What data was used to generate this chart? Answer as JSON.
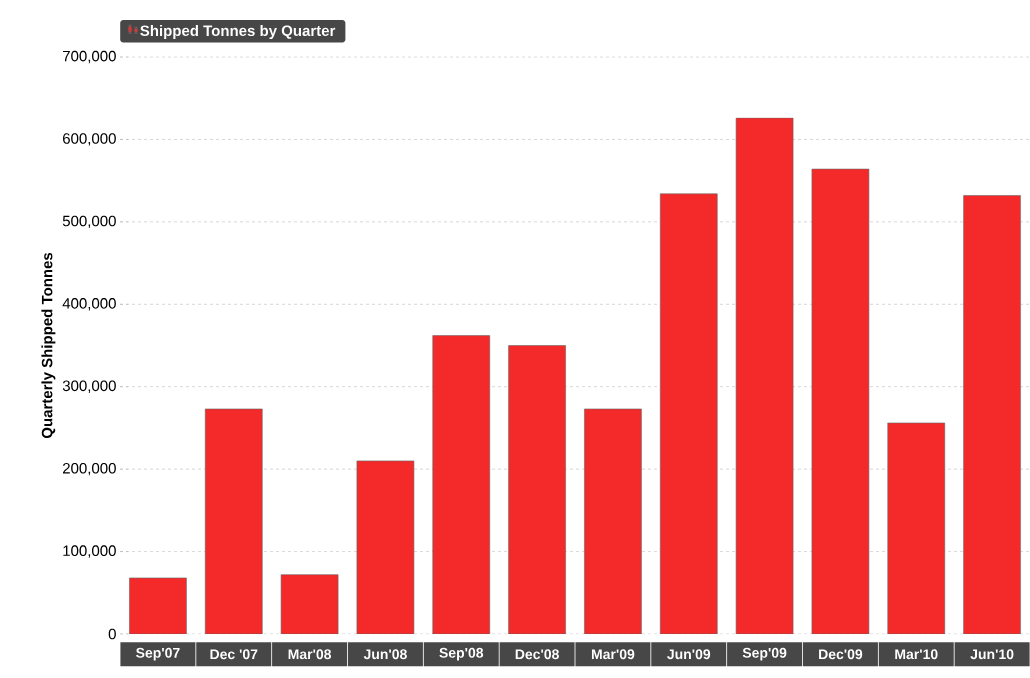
{
  "chart_data": {
    "type": "bar",
    "ylabel": "Quarterly Shipped Tonnes",
    "categories": [
      "Sep'07",
      "Dec '07",
      "Mar'08",
      "Jun'08",
      "Sep'08",
      "Dec'08",
      "Mar'09",
      "Jun'09",
      "Sep'09",
      "Dec'09",
      "Mar'10",
      "Jun'10"
    ],
    "series": [
      {
        "name": "Shipped Tonnes by Quarter",
        "color": "#f42a2a",
        "values": [
          68000,
          273000,
          72000,
          210000,
          362000,
          350000,
          273000,
          534000,
          626000,
          564000,
          256000,
          532000
        ]
      }
    ],
    "ylim": [
      0,
      700000
    ],
    "yticks": [
      0,
      {
        "value": 100000,
        "label": "100,000"
      },
      {
        "value": 200000,
        "label": "200,000"
      },
      {
        "value": 300000,
        "label": "300,000"
      },
      {
        "value": 400000,
        "label": "400,000"
      },
      {
        "value": 500000,
        "label": "500,000"
      },
      {
        "value": 600000,
        "label": "600,000"
      },
      {
        "value": 700000,
        "label": "700,000"
      }
    ],
    "grid": "y",
    "legend": "top left"
  }
}
